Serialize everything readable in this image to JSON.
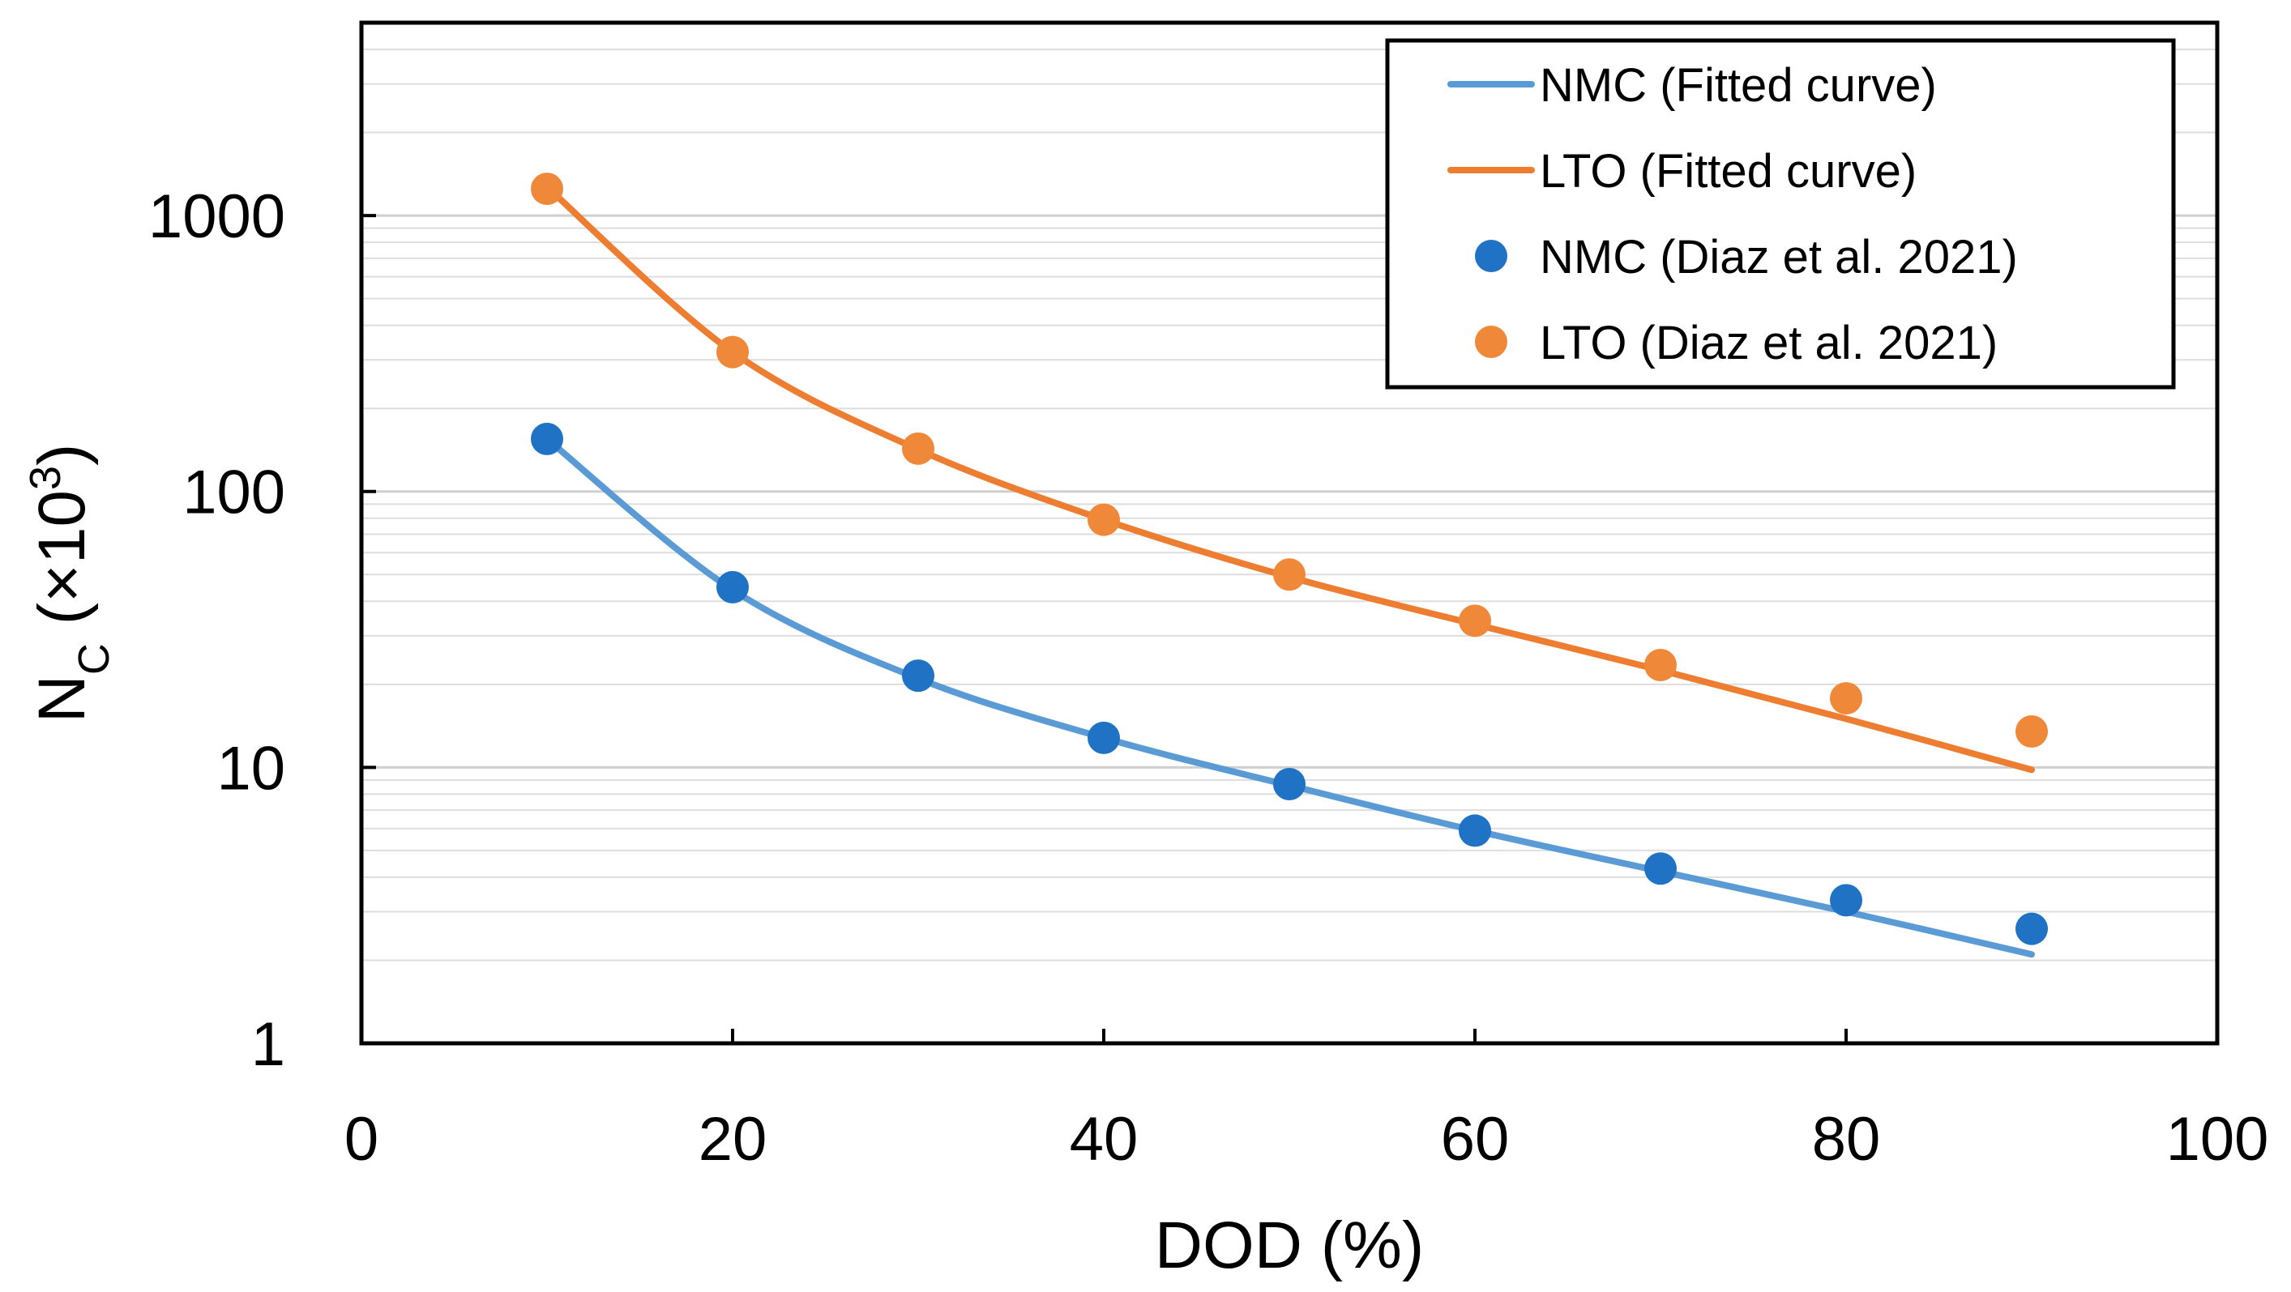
{
  "chart_data": {
    "type": "scatter",
    "x_axis": {
      "label": "DOD (%)",
      "range": [
        0,
        100
      ],
      "ticks": [
        0,
        20,
        40,
        60,
        80,
        100
      ],
      "tick_labels": [
        "0",
        "20",
        "40",
        "60",
        "80",
        "100"
      ]
    },
    "y_axis": {
      "label_main": "N",
      "label_sub": "C",
      "label_rest": " (×10",
      "label_sup": "3",
      "label_end": ")",
      "scale": "log",
      "range": [
        1,
        5000
      ],
      "ticks": [
        1,
        10,
        100,
        1000
      ],
      "tick_labels": [
        "1",
        "10",
        "100",
        "1000"
      ],
      "minor_gridlines": true
    },
    "legend": {
      "position": "top-right",
      "entries": [
        {
          "label": "NMC (Fitted curve)",
          "kind": "line",
          "color": "#5B9BD5"
        },
        {
          "label": "LTO (Fitted curve)",
          "kind": "line",
          "color": "#ED7D31"
        },
        {
          "label": "NMC (Diaz et al. 2021)",
          "kind": "marker",
          "color": "#1F72C4"
        },
        {
          "label": "LTO (Diaz et al. 2021)",
          "kind": "marker",
          "color": "#F0883A"
        }
      ]
    },
    "series": [
      {
        "name": "NMC (Fitted curve)",
        "type": "line",
        "color": "#5B9BD5",
        "x": [
          10,
          20,
          30,
          40,
          50,
          60,
          70,
          80,
          90
        ],
        "y": [
          155,
          44,
          21,
          12.8,
          8.6,
          5.9,
          4.2,
          3.0,
          2.1
        ]
      },
      {
        "name": "LTO (Fitted curve)",
        "type": "line",
        "color": "#ED7D31",
        "x": [
          10,
          20,
          30,
          40,
          50,
          60,
          70,
          80,
          90
        ],
        "y": [
          1270,
          320,
          142,
          79,
          49,
          33,
          22.5,
          15,
          9.8
        ]
      },
      {
        "name": "NMC (Diaz et al. 2021)",
        "type": "scatter",
        "color": "#1F72C4",
        "x": [
          10,
          20,
          30,
          40,
          50,
          60,
          70,
          80,
          90
        ],
        "y": [
          155,
          45,
          21.5,
          12.8,
          8.7,
          5.9,
          4.3,
          3.3,
          2.6
        ]
      },
      {
        "name": "LTO (Diaz et al. 2021)",
        "type": "scatter",
        "color": "#F0883A",
        "x": [
          10,
          20,
          30,
          40,
          50,
          60,
          70,
          80,
          90
        ],
        "y": [
          1250,
          320,
          143,
          79,
          50,
          34,
          23.5,
          17.8,
          13.5
        ]
      }
    ]
  }
}
